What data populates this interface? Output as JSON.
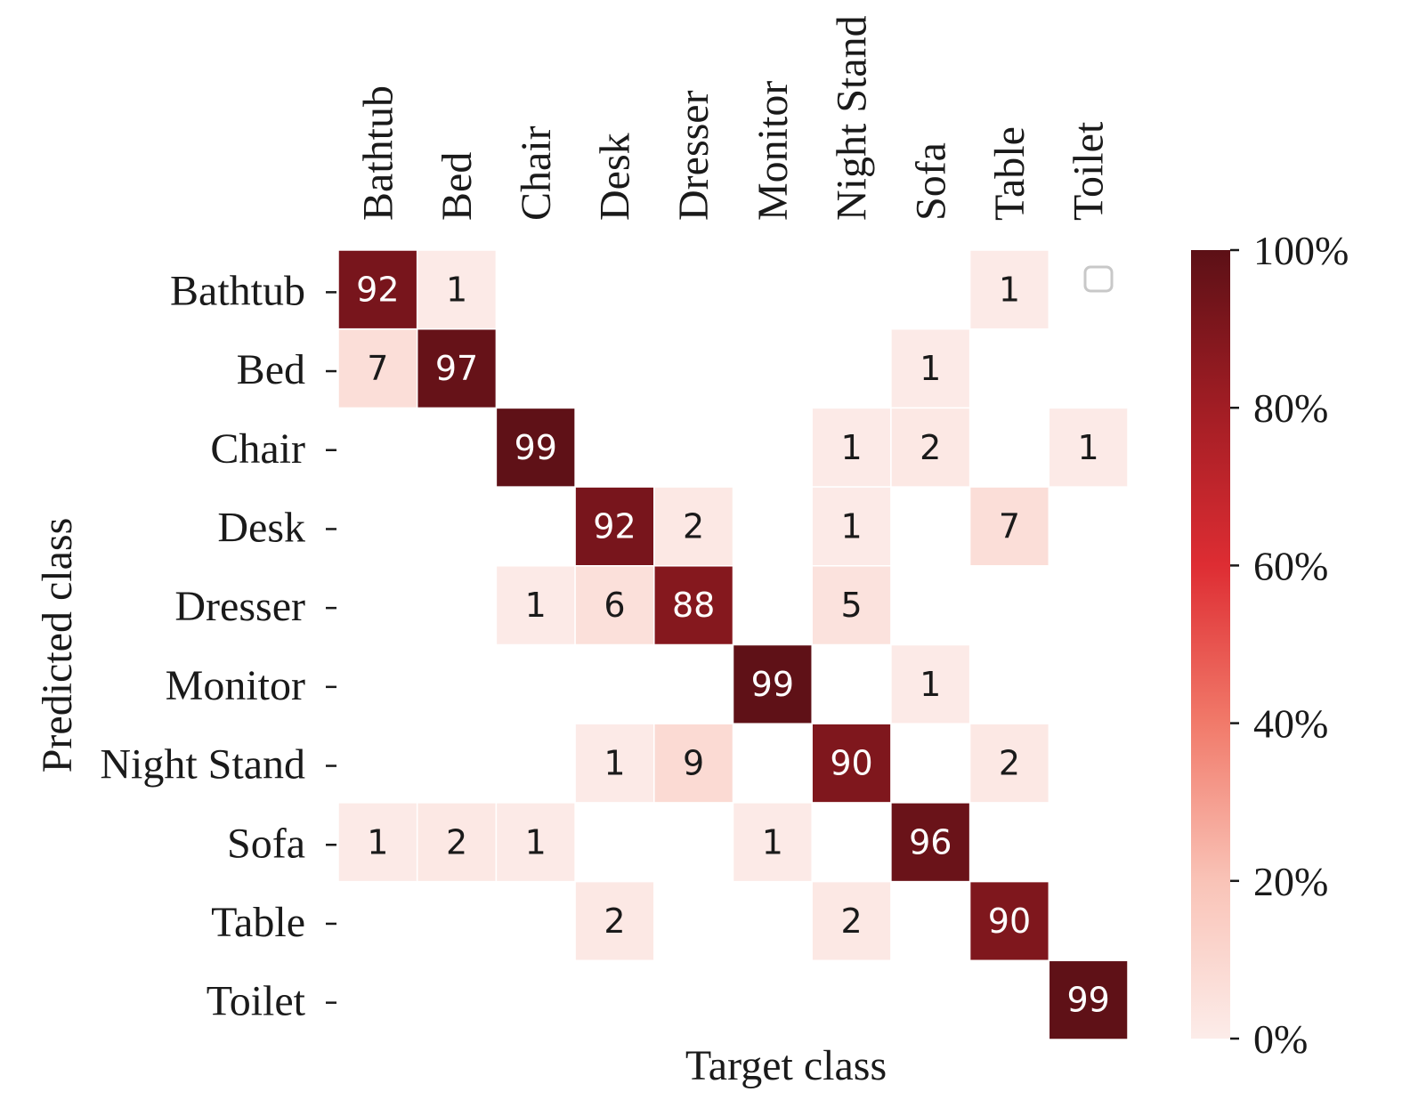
{
  "chart_data": {
    "type": "heatmap",
    "title": "",
    "xlabel": "Target class",
    "ylabel": "Predicted class",
    "x_categories": [
      "Bathtub",
      "Bed",
      "Chair",
      "Desk",
      "Dresser",
      "Monitor",
      "Night Stand",
      "Sofa",
      "Table",
      "Toilet"
    ],
    "y_categories": [
      "Bathtub",
      "Bed",
      "Chair",
      "Desk",
      "Dresser",
      "Monitor",
      "Night Stand",
      "Sofa",
      "Table",
      "Toilet"
    ],
    "values": [
      [
        92,
        1,
        null,
        null,
        null,
        null,
        null,
        null,
        1,
        0
      ],
      [
        7,
        97,
        null,
        null,
        null,
        null,
        null,
        1,
        null,
        null
      ],
      [
        null,
        null,
        99,
        null,
        null,
        null,
        1,
        2,
        null,
        1
      ],
      [
        null,
        null,
        null,
        92,
        2,
        null,
        1,
        null,
        7,
        null
      ],
      [
        null,
        null,
        1,
        6,
        88,
        null,
        5,
        null,
        null,
        null
      ],
      [
        null,
        null,
        null,
        null,
        null,
        99,
        null,
        1,
        null,
        null
      ],
      [
        null,
        null,
        null,
        1,
        9,
        null,
        90,
        null,
        2,
        null
      ],
      [
        1,
        2,
        1,
        null,
        null,
        1,
        null,
        96,
        null,
        null
      ],
      [
        null,
        null,
        null,
        2,
        null,
        null,
        2,
        null,
        90,
        null
      ],
      [
        null,
        null,
        null,
        null,
        null,
        null,
        null,
        null,
        null,
        99
      ]
    ],
    "value_range": [
      0,
      100
    ],
    "colorbar": {
      "ticks": [
        "0%",
        "20%",
        "40%",
        "60%",
        "80%",
        "100%"
      ],
      "tick_values": [
        0,
        20,
        40,
        60,
        80,
        100
      ]
    },
    "colormap": [
      "#fcece9",
      "#f9c3b7",
      "#f17a6a",
      "#de2d33",
      "#a11d24",
      "#5c1016"
    ],
    "text_dark": "#1a1a1a",
    "text_light": "#ffffff",
    "annotations": [
      "0"
    ]
  }
}
